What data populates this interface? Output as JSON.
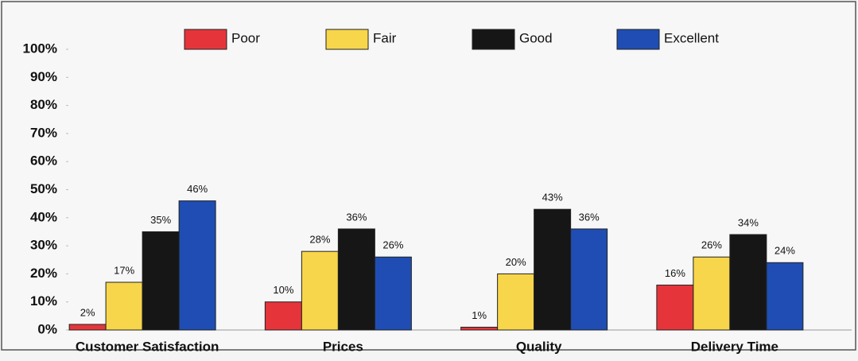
{
  "chart_data": {
    "type": "bar",
    "categories": [
      "Customer Satisfaction",
      "Prices",
      "Quality",
      "Delivery Time"
    ],
    "series": [
      {
        "name": "Poor",
        "color": "#e5353b",
        "values": [
          2,
          10,
          1,
          16
        ],
        "value_labels": [
          "2%",
          "10%",
          "1%",
          "16%"
        ]
      },
      {
        "name": "Fair",
        "color": "#f7d64b",
        "values": [
          17,
          28,
          20,
          26
        ],
        "value_labels": [
          "17%",
          "28%",
          "20%",
          "26%"
        ]
      },
      {
        "name": "Good",
        "color": "#161616",
        "values": [
          35,
          36,
          43,
          34
        ],
        "value_labels": [
          "35%",
          "36%",
          "43%",
          "34%"
        ]
      },
      {
        "name": "Excellent",
        "color": "#1f4db3",
        "values": [
          46,
          26,
          36,
          24
        ],
        "value_labels": [
          "46%",
          "26%",
          "36%",
          "24%"
        ]
      }
    ],
    "ylim": [
      0,
      100
    ],
    "yticks": [
      {
        "value": 0,
        "label": "0%"
      },
      {
        "value": 10,
        "label": "10%"
      },
      {
        "value": 20,
        "label": "20%"
      },
      {
        "value": 30,
        "label": "30%"
      },
      {
        "value": 40,
        "label": "40%"
      },
      {
        "value": 50,
        "label": "50%"
      },
      {
        "value": 60,
        "label": "60%"
      },
      {
        "value": 70,
        "label": "70%"
      },
      {
        "value": 80,
        "label": "80%"
      },
      {
        "value": 90,
        "label": "90%"
      },
      {
        "value": 100,
        "label": "100%"
      }
    ],
    "grid": false,
    "legend": "top"
  }
}
